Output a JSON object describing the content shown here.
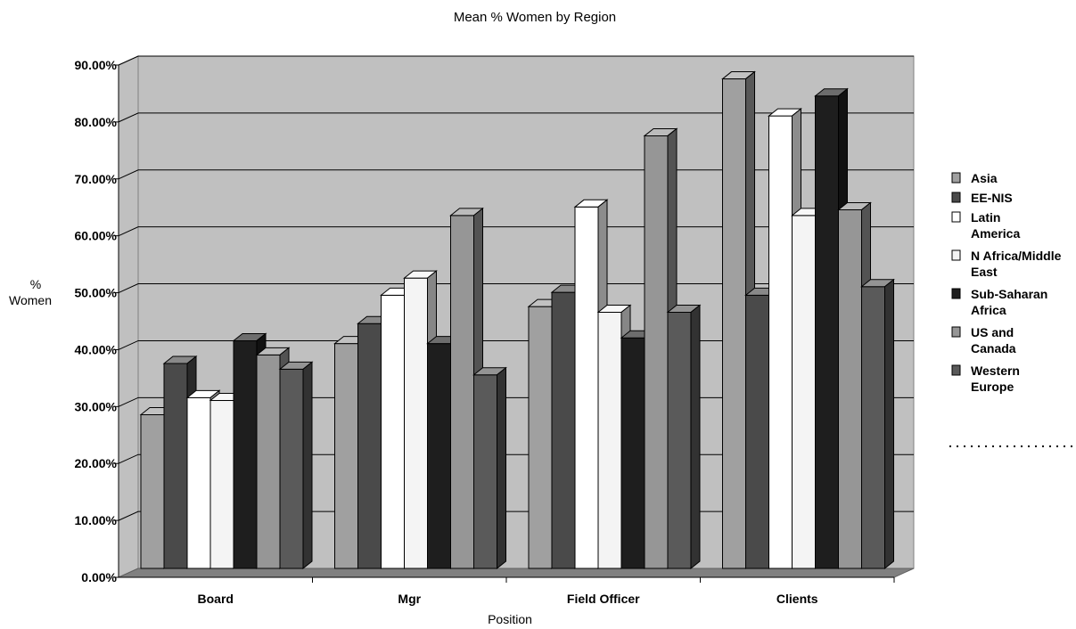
{
  "chart_data": {
    "type": "bar",
    "title": "Mean % Women by Region",
    "xlabel": "Position",
    "ylabel": "% Women",
    "categories": [
      "Board",
      "Mgr",
      "Field Officer",
      "Clients"
    ],
    "yticks": [
      "0.00%",
      "10.00%",
      "20.00%",
      "30.00%",
      "40.00%",
      "50.00%",
      "60.00%",
      "70.00%",
      "80.00%",
      "90.00%"
    ],
    "ylim": [
      0,
      90
    ],
    "grid": true,
    "legend_position": "right",
    "series": [
      {
        "name": "Asia",
        "legend_lines": [
          "Asia"
        ],
        "color": "#a0a0a0",
        "values": [
          27,
          39.5,
          46,
          86
        ]
      },
      {
        "name": "EE-NIS",
        "legend_lines": [
          "EE-NIS"
        ],
        "color": "#4a4a4a",
        "values": [
          36,
          43,
          48.5,
          48
        ]
      },
      {
        "name": "Latin America",
        "legend_lines": [
          "Latin",
          "America"
        ],
        "color": "#ffffff",
        "values": [
          30,
          48,
          63.5,
          79.5
        ]
      },
      {
        "name": "N Africa/Middle East",
        "legend_lines": [
          "N Africa/Middle",
          "East"
        ],
        "color": "#f4f4f4",
        "values": [
          29.5,
          51,
          45,
          62
        ]
      },
      {
        "name": "Sub-Saharan Africa",
        "legend_lines": [
          "Sub-Saharan",
          "Africa"
        ],
        "color": "#1e1e1e",
        "values": [
          40,
          39.5,
          40.5,
          83
        ]
      },
      {
        "name": "US and Canada",
        "legend_lines": [
          "US and",
          "Canada"
        ],
        "color": "#969696",
        "values": [
          37.5,
          62,
          76,
          63
        ]
      },
      {
        "name": "Western Europe",
        "legend_lines": [
          "Western",
          "Europe"
        ],
        "color": "#5a5a5a",
        "values": [
          35,
          34,
          45,
          49.5
        ]
      }
    ]
  }
}
